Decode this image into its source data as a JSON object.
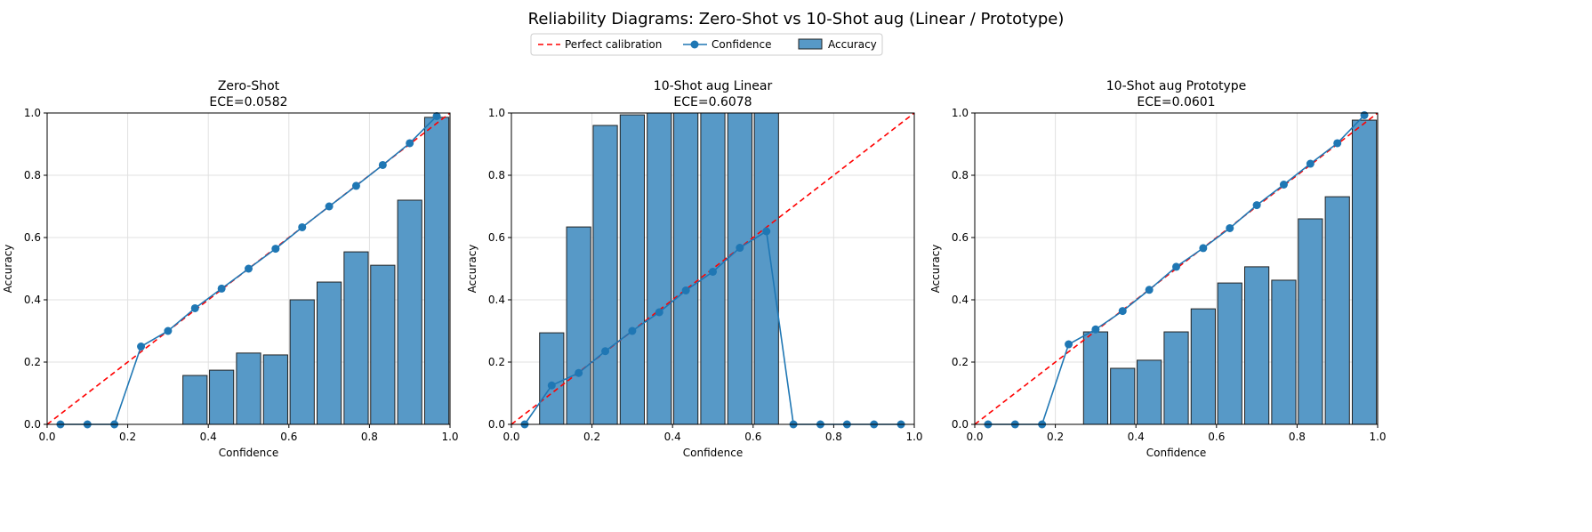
{
  "chart_data": {
    "suptitle": "Reliability Diagrams: Zero-Shot vs 10-Shot aug (Linear / Prototype)",
    "legend": {
      "placement": "top-center",
      "entries": [
        "Perfect calibration",
        "Confidence",
        "Accuracy"
      ]
    },
    "colors": {
      "bar": "#5799c7",
      "bar_edge": "#222222",
      "line": "#1f77b4",
      "diagonal": "#ff0000",
      "grid": "#e0e0e0"
    },
    "bin_centers": [
      0.033,
      0.1,
      0.167,
      0.233,
      0.3,
      0.367,
      0.433,
      0.5,
      0.567,
      0.633,
      0.7,
      0.767,
      0.833,
      0.9,
      0.967
    ],
    "bin_width": 0.0667,
    "panels": [
      {
        "type": "bar+line",
        "title": "Zero-Shot",
        "subtitle": "ECE=0.0582",
        "xlabel": "Confidence",
        "ylabel": "Accuracy",
        "xlim": [
          0,
          1
        ],
        "ylim": [
          0,
          1
        ],
        "grid": true,
        "accuracy": [
          0,
          0,
          0,
          0,
          0,
          0.157,
          0.174,
          0.229,
          0.223,
          0.4,
          0.457,
          0.554,
          0.511,
          0.72,
          0.986
        ],
        "confidence": [
          0,
          0,
          0,
          0.25,
          0.3,
          0.373,
          0.436,
          0.5,
          0.564,
          0.633,
          0.7,
          0.766,
          0.833,
          0.903,
          0.99
        ]
      },
      {
        "type": "bar+line",
        "title": "10-Shot aug Linear",
        "subtitle": "ECE=0.6078",
        "xlabel": "Confidence",
        "ylabel": "Accuracy",
        "xlim": [
          0,
          1
        ],
        "ylim": [
          0,
          1
        ],
        "grid": true,
        "accuracy": [
          0,
          0.294,
          0.634,
          0.96,
          0.994,
          1,
          1,
          1,
          1,
          1,
          0,
          0,
          0,
          0,
          0
        ],
        "confidence": [
          0,
          0.125,
          0.165,
          0.235,
          0.3,
          0.36,
          0.43,
          0.49,
          0.567,
          0.62,
          0,
          0,
          0,
          0,
          0
        ]
      },
      {
        "type": "bar+line",
        "title": "10-Shot aug Prototype",
        "subtitle": "ECE=0.0601",
        "xlabel": "Confidence",
        "ylabel": "Accuracy",
        "xlim": [
          0,
          1
        ],
        "ylim": [
          0,
          1
        ],
        "grid": true,
        "accuracy": [
          0,
          0,
          0,
          0,
          0.297,
          0.18,
          0.206,
          0.297,
          0.371,
          0.454,
          0.506,
          0.463,
          0.66,
          0.731,
          0.977
        ],
        "confidence": [
          0,
          0,
          0,
          0.257,
          0.305,
          0.364,
          0.432,
          0.506,
          0.566,
          0.63,
          0.704,
          0.77,
          0.837,
          0.903,
          0.993
        ]
      }
    ],
    "xticks": [
      "0.0",
      "0.2",
      "0.4",
      "0.6",
      "0.8",
      "1.0"
    ],
    "yticks": [
      "0.0",
      "0.2",
      "0.4",
      "0.6",
      "0.8",
      "1.0"
    ]
  }
}
